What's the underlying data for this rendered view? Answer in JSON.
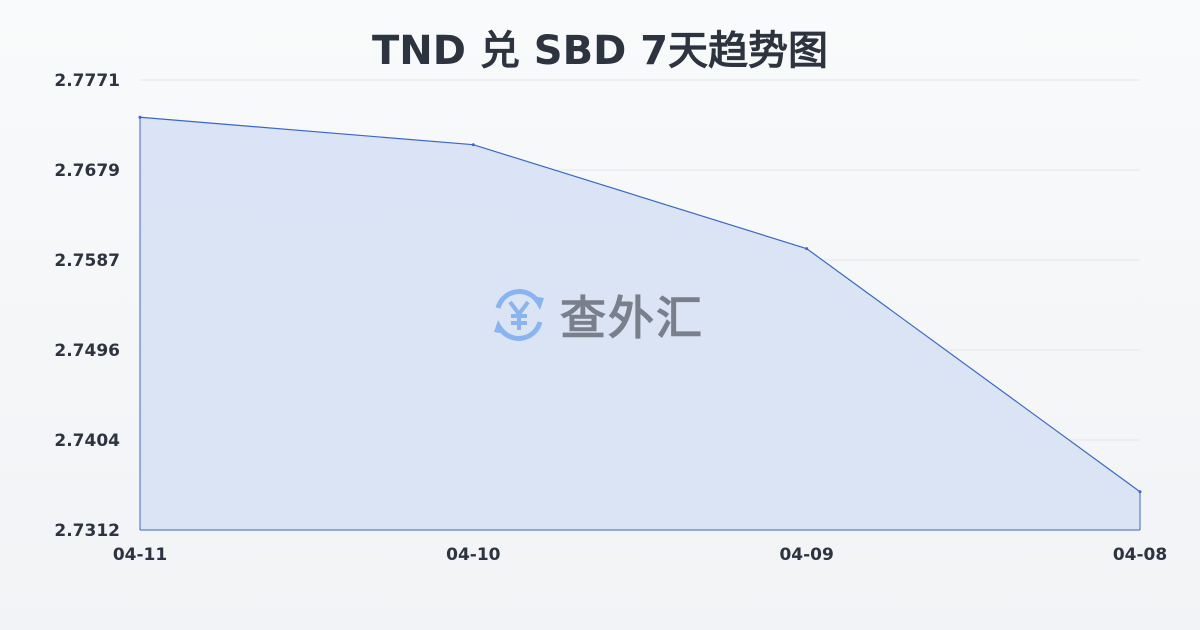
{
  "chart_data": {
    "type": "area",
    "title": "TND 兑 SBD 7天趋势图",
    "categories": [
      "04-11",
      "04-10",
      "04-09",
      "04-08"
    ],
    "values": [
      2.7733,
      2.7705,
      2.7599,
      2.7351
    ],
    "yticks": [
      "2.7771",
      "2.7679",
      "2.7587",
      "2.7496",
      "2.7404",
      "2.7312"
    ],
    "ylim": [
      2.7312,
      2.7771
    ],
    "grid": true,
    "line_color": "#3a66cc",
    "fill_color": "#d6e0f5"
  },
  "watermark": {
    "text": "查外汇",
    "icon": "yen-exchange-icon",
    "icon_color": "#8ab4f0"
  }
}
